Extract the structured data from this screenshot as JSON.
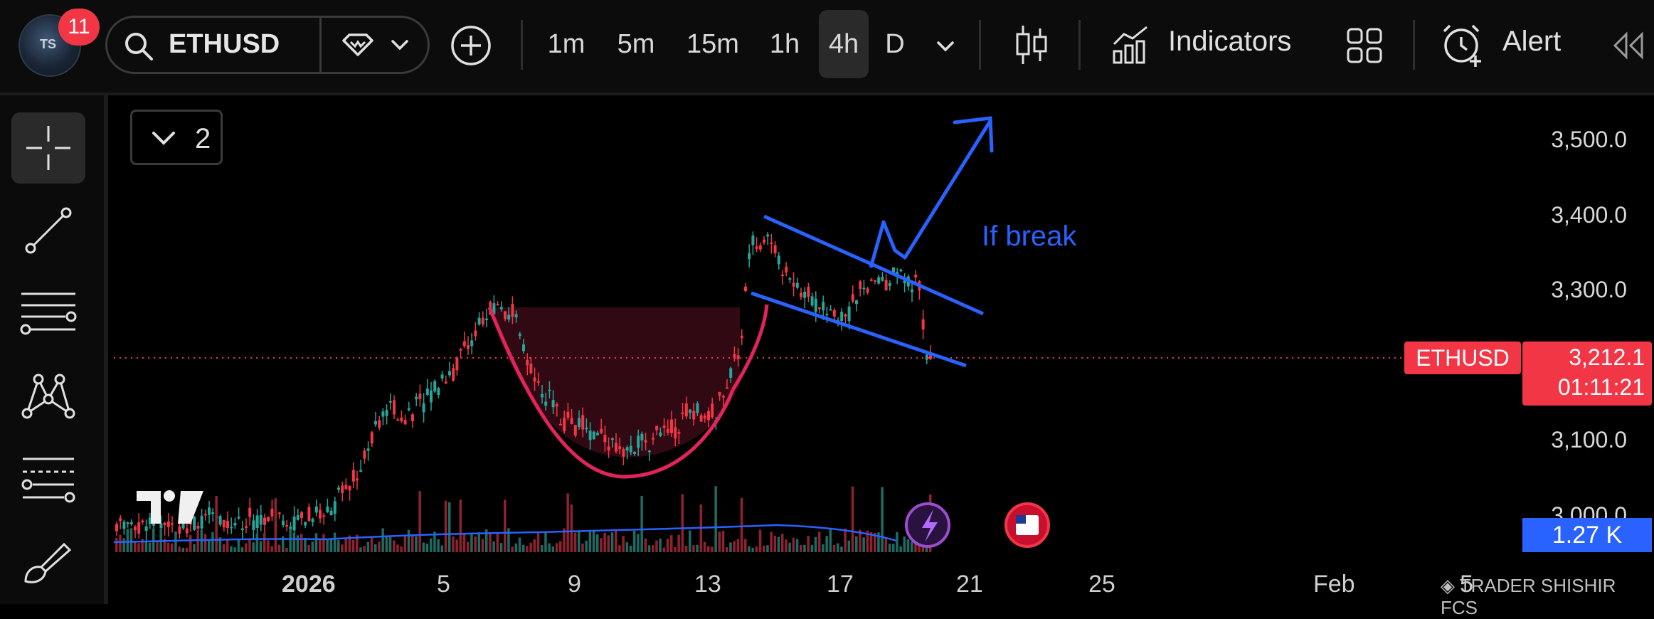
{
  "toolbar": {
    "notification_count": "11",
    "symbol": "ETHUSD",
    "timeframes": [
      "1m",
      "5m",
      "15m",
      "1h",
      "4h",
      "D"
    ],
    "active_timeframe": "4h",
    "indicators_label": "Indicators",
    "alert_label": "Alert",
    "icons": [
      "avatar",
      "search-icon",
      "diamond-icon",
      "chevron-down-icon",
      "add-circle-icon",
      "candles-icon",
      "indicators-chart-icon",
      "layout-grid-icon",
      "alarm-clock-icon",
      "collapse-arrows-icon"
    ]
  },
  "sidebar": {
    "tools": [
      "crosshair",
      "trend-line",
      "horizontal-lines",
      "pattern",
      "fib",
      "brush"
    ]
  },
  "chart": {
    "legend_count": "2",
    "price_axis": [
      "3,500.0",
      "3,400.0",
      "3,300.0",
      "3,100.0",
      "3,000.0"
    ],
    "date_axis": [
      "2026",
      "5",
      "9",
      "13",
      "17",
      "21",
      "25",
      "Feb",
      "5"
    ],
    "symbol_tag": "ETHUSD",
    "last_price": "3,212.1",
    "countdown": "01:11:21",
    "volume_value": "1.27 K",
    "annotation": "If break",
    "watermark": "TRADER SHISHIR FCS",
    "colors": {
      "up": "#26a69a",
      "down": "#f23645",
      "annotation": "#2962ff",
      "pattern": "#e3245b"
    }
  }
}
